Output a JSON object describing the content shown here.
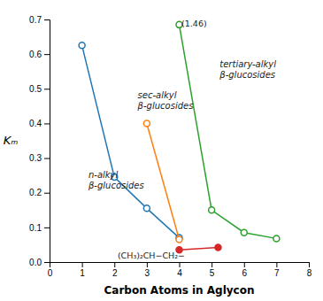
{
  "chart_data": {
    "type": "line",
    "xlabel": "Carbon Atoms in Aglycon",
    "ylabel": "Kₘ",
    "xlim": [
      0,
      8
    ],
    "xticks": [
      0,
      1,
      2,
      3,
      4,
      5,
      6,
      7,
      8
    ],
    "ylim": [
      0,
      0.7
    ],
    "yticks": [
      {
        "value": 0.0,
        "label": "0.0"
      },
      0.1,
      0.2,
      0.3,
      0.4,
      0.5,
      0.6,
      0.7
    ],
    "grid": false,
    "series": [
      {
        "x": [
          1,
          2,
          3,
          4
        ],
        "values": [
          0.625,
          0.245,
          0.155,
          0.07
        ],
        "marker": "open-circle"
      },
      {
        "x": [
          3,
          4
        ],
        "values": [
          0.4,
          0.065
        ],
        "marker": "open-circle"
      },
      {
        "x": [
          4,
          5,
          6,
          7
        ],
        "values": [
          0.685,
          0.15,
          0.085,
          0.068
        ],
        "marker": "open-circle"
      },
      {
        "x": [
          4,
          5.2
        ],
        "values": [
          0.035,
          0.042
        ],
        "marker": "filled-circle"
      }
    ],
    "annotations": [
      {
        "text": "n-alkyl\nβ-glucosides",
        "x": 1.2,
        "y": 0.205
      },
      {
        "text": "sec-alkyl\nβ-glucosides",
        "x": 2.72,
        "y": 0.435
      },
      {
        "text": "tertiary-alkyl\nβ-glucosides",
        "x": 5.25,
        "y": 0.525
      },
      {
        "text": "(CH₃)₂CH−CH₂−",
        "x": 2.1,
        "y": 0.018
      },
      {
        "text": "(1.46)",
        "x": 4.07,
        "y": 0.686
      }
    ]
  }
}
